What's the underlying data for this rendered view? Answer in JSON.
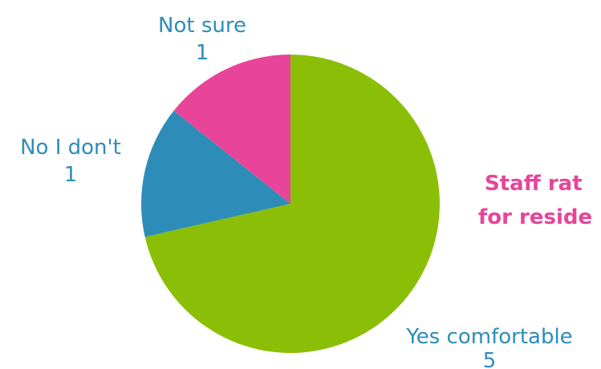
{
  "chart_data": {
    "type": "pie",
    "labels": [
      "Yes comfortable",
      "No I don't",
      "Not sure"
    ],
    "values": [
      5,
      1,
      1
    ],
    "colors": [
      "#8bbf07",
      "#2e8db8",
      "#e8449a"
    ],
    "start_angle_deg": 0,
    "direction": "clockwise",
    "side_text_lines": [
      "Staff rat",
      "for reside"
    ],
    "legend": "none"
  }
}
